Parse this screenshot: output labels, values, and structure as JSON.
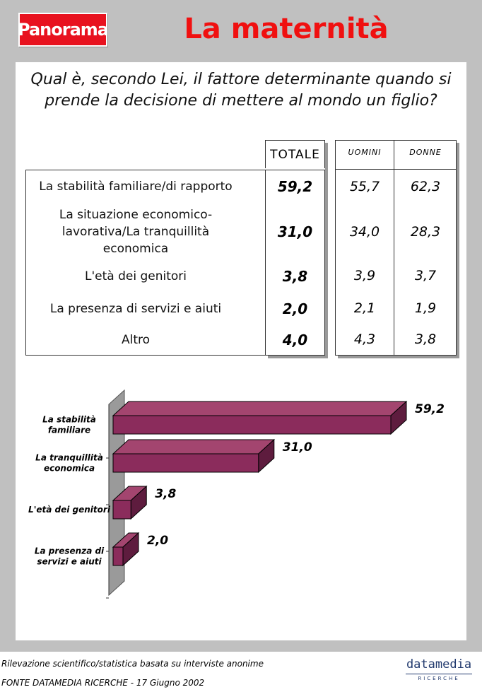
{
  "header": {
    "logo": "Panorama",
    "title": "La maternità"
  },
  "question": "Qual è, secondo Lei, il fattore determinante quando si prende la decisione di mettere al mondo un figlio?",
  "table": {
    "total_header": "TOTALE",
    "gender_headers": [
      "UOMINI",
      "DONNE"
    ],
    "rows": [
      {
        "label": "La stabilità familiare/di rapporto",
        "totale": "59,2",
        "uomini": "55,7",
        "donne": "62,3"
      },
      {
        "label": "La situazione economico-lavorativa/La tranquillità economica",
        "totale": "31,0",
        "uomini": "34,0",
        "donne": "28,3"
      },
      {
        "label": "L'età dei genitori",
        "totale": "3,8",
        "uomini": "3,9",
        "donne": "3,7"
      },
      {
        "label": "La presenza di servizi e aiuti",
        "totale": "2,0",
        "uomini": "2,1",
        "donne": "1,9"
      },
      {
        "label": "Altro",
        "totale": "4,0",
        "uomini": "4,3",
        "donne": "3,8"
      }
    ]
  },
  "chart_data": {
    "type": "bar",
    "orientation": "horizontal",
    "categories": [
      "La stabilità familiare",
      "La tranquillità economica",
      "L'età dei genitori",
      "La presenza di servizi e aiuti"
    ],
    "values": [
      59.2,
      31.0,
      3.8,
      2.0
    ],
    "value_labels": [
      "59,2",
      "31,0",
      "3,8",
      "2,0"
    ],
    "bar_color": "#8b2c5c",
    "xlim": [
      0,
      59.2
    ]
  },
  "footer": {
    "line1": "Rilevazione scientifico/statistica basata su interviste anonime",
    "line2": "FONTE DATAMEDIA RICERCHE - 17 Giugno 2002",
    "brand": "datamedia",
    "brand_sub": "RICERCHE"
  }
}
